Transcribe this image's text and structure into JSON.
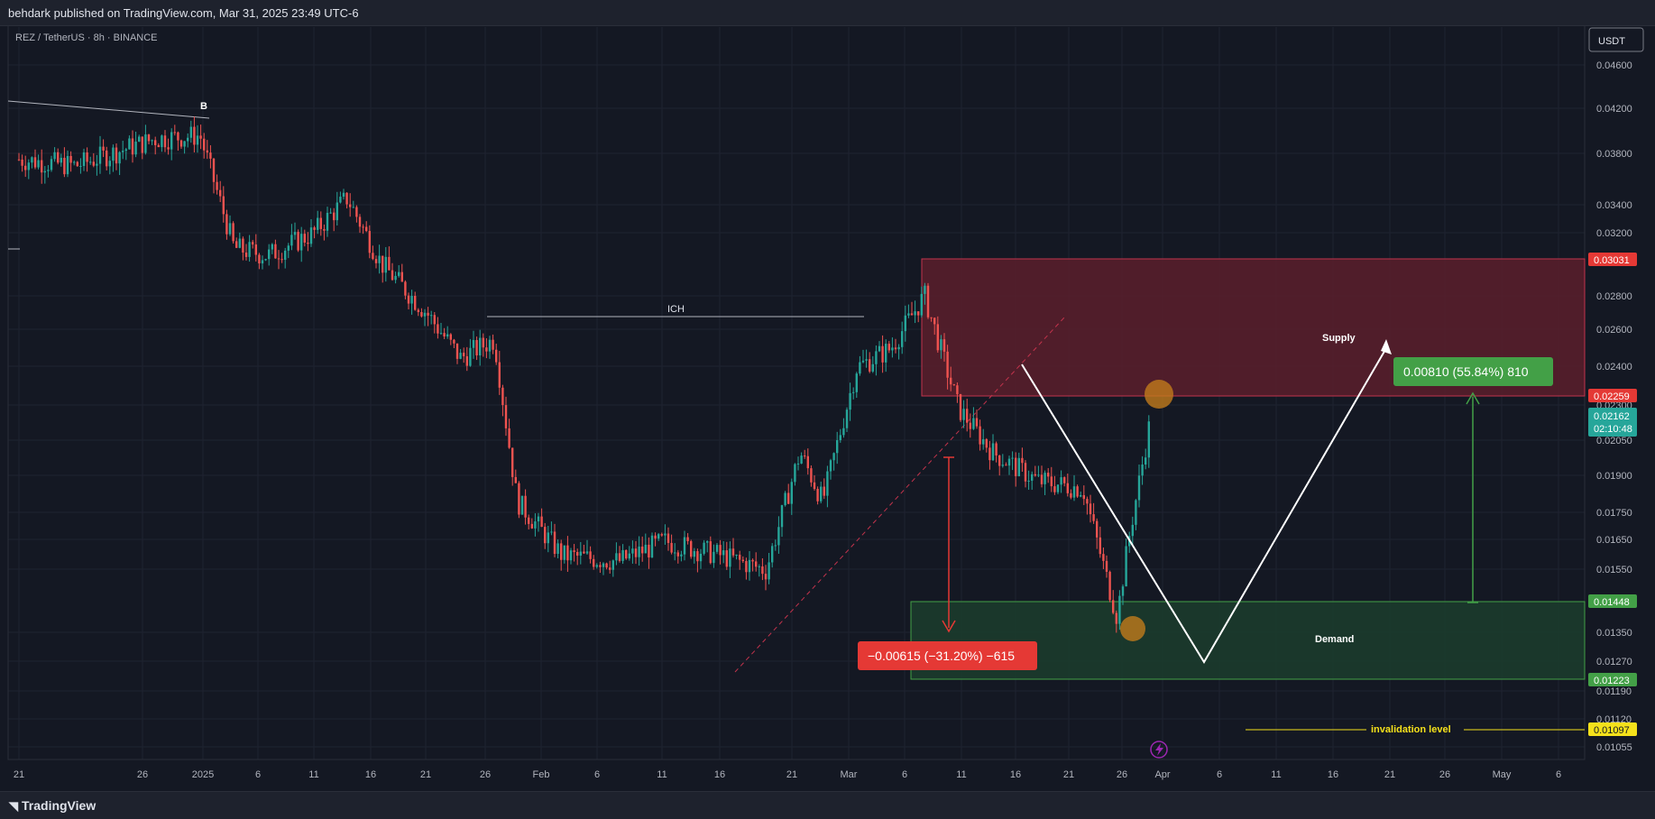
{
  "publisher_line": "behdark published on TradingView.com, Mar 31, 2025 23:49 UTC-6",
  "symbol_line": "REZ / TetherUS · 8h · BINANCE",
  "currency_button": "USDT",
  "footer_brand": "TradingView",
  "price_axis": {
    "ticks": [
      "0.04600",
      "0.04200",
      "0.03800",
      "0.03400",
      "0.03200",
      "0.02800",
      "0.02600",
      "0.02400",
      "0.02300",
      "0.02050",
      "0.01900",
      "0.01750",
      "0.01650",
      "0.01550",
      "0.01350",
      "0.01270",
      "0.01190",
      "0.01120",
      "0.01055"
    ],
    "badges": {
      "supply_top": "0.03031",
      "supply_bottom": "0.02259",
      "current_price": "0.02162",
      "countdown": "02:10:48",
      "demand_top": "0.01448",
      "demand_bottom": "0.01223",
      "invalidation": "0.01097"
    }
  },
  "time_axis": [
    "21",
    "26",
    "2025",
    "6",
    "11",
    "16",
    "21",
    "26",
    "Feb",
    "6",
    "11",
    "16",
    "21",
    "Mar",
    "6",
    "11",
    "16",
    "21",
    "26",
    "Apr",
    "6",
    "11",
    "16",
    "21",
    "26",
    "May",
    "6"
  ],
  "annotations": {
    "b_label": "B",
    "ich_label": "ICH",
    "supply_label": "Supply",
    "demand_label": "Demand",
    "invalidation_label": "invalidation level",
    "measure_up": "0.00810 (55.84%) 810",
    "measure_down": "−0.00615 (−31.20%) −615"
  },
  "colors": {
    "background": "#141823",
    "bull": "#26a69a",
    "bear": "#ef5350",
    "supply_zone": "#5a1f2c",
    "demand_zone": "#1b3b2c",
    "measure_up": "#43a047",
    "measure_down": "#e53935",
    "invalidation": "#f5e11b",
    "circle": "#c07a1c"
  },
  "chart_data": {
    "type": "candlestick",
    "symbol": "REZ / TetherUS",
    "interval": "8h",
    "exchange": "BINANCE",
    "x_range": [
      "2024-12-21",
      "2025-05-06"
    ],
    "y_scale": "log",
    "close_path": [
      [
        "2024-12-21",
        0.0375
      ],
      [
        "2024-12-26",
        0.037
      ],
      [
        "2025-01-02",
        0.0392
      ],
      [
        "2025-01-06",
        0.0395
      ],
      [
        "2025-01-09",
        0.031
      ],
      [
        "2025-01-12",
        0.0305
      ],
      [
        "2025-01-16",
        0.032
      ],
      [
        "2025-01-19",
        0.0345
      ],
      [
        "2025-01-22",
        0.03
      ],
      [
        "2025-01-26",
        0.027
      ],
      [
        "2025-01-29",
        0.0245
      ],
      [
        "2025-02-01",
        0.0255
      ],
      [
        "2025-02-03",
        0.018
      ],
      [
        "2025-02-07",
        0.016
      ],
      [
        "2025-02-12",
        0.0158
      ],
      [
        "2025-02-16",
        0.0165
      ],
      [
        "2025-02-21",
        0.016
      ],
      [
        "2025-02-25",
        0.0155
      ],
      [
        "2025-02-28",
        0.02
      ],
      [
        "2025-03-02",
        0.018
      ],
      [
        "2025-03-05",
        0.024
      ],
      [
        "2025-03-08",
        0.025
      ],
      [
        "2025-03-11",
        0.028
      ],
      [
        "2025-03-14",
        0.022
      ],
      [
        "2025-03-17",
        0.02
      ],
      [
        "2025-03-21",
        0.0188
      ],
      [
        "2025-03-25",
        0.0185
      ],
      [
        "2025-03-28",
        0.014
      ],
      [
        "2025-03-29",
        0.0165
      ],
      [
        "2025-03-31",
        0.0216
      ]
    ],
    "zones": [
      {
        "name": "Supply",
        "from": 0.02259,
        "to": 0.03031
      },
      {
        "name": "Demand",
        "from": 0.01223,
        "to": 0.01448
      }
    ],
    "invalidation_level": 0.01097,
    "last_price": 0.02162
  }
}
